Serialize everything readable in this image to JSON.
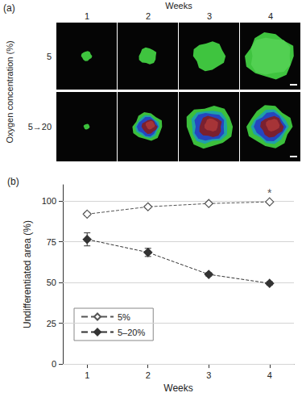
{
  "panel_a": {
    "title": "(a)",
    "column_title": "Weeks",
    "columns": [
      "1",
      "2",
      "3",
      "4"
    ],
    "row_title": "Oxygen concentration (%)",
    "rows": [
      "5",
      "5→20"
    ]
  },
  "chart_data": {
    "type": "line",
    "title": "(b)",
    "x_label": "Weeks",
    "y_label": "Undifferentiated area (%)",
    "x": [
      1,
      2,
      3,
      4
    ],
    "series": [
      {
        "name": "5%",
        "color": "#555555",
        "marker": "diamond_open",
        "line_style": "dashed",
        "values": [
          92,
          96.5,
          98.5,
          99.5
        ],
        "errors": [
          1,
          0.8,
          0.6,
          0.5
        ]
      },
      {
        "name": "5–20%",
        "color": "#333333",
        "marker": "diamond",
        "line_style": "dashed",
        "values": [
          76.5,
          68.5,
          55,
          49.5
        ],
        "errors": [
          4,
          2.5,
          1,
          1
        ]
      }
    ],
    "xlim": [
      0.6,
      4.4
    ],
    "xticks": [
      1,
      2,
      3,
      4
    ],
    "ylim": [
      0,
      110
    ],
    "yticks": [
      0,
      25,
      50,
      75,
      100
    ],
    "grid": true,
    "legend": "lower left",
    "annotations": [
      {
        "text": "*",
        "x": 4,
        "y": 105
      }
    ]
  }
}
